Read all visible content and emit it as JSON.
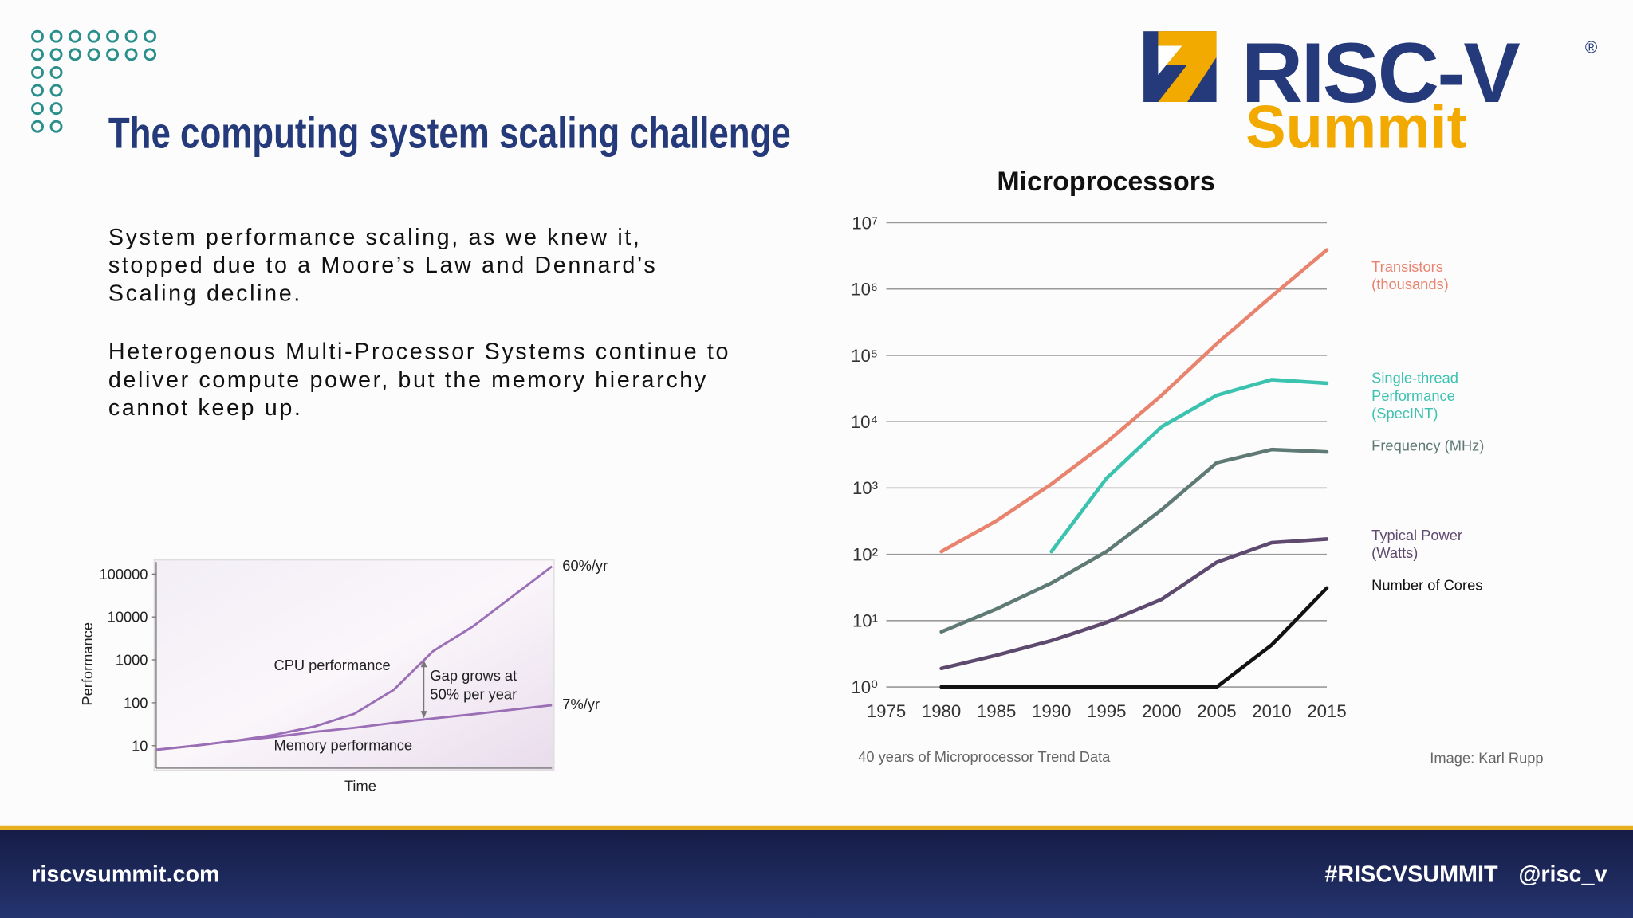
{
  "header": {
    "title": "The computing system scaling challenge",
    "logo": {
      "name": "RISC-V",
      "registered": "®",
      "tagline": "Summit"
    }
  },
  "body": {
    "paragraphs": [
      "System performance scaling, as we knew it, stopped due to a Moore’s Law and Dennard’s Scaling decline.",
      "Heterogenous Multi-Processor Systems continue to deliver compute power, but the memory hierarchy cannot keep up."
    ]
  },
  "chart_data": [
    {
      "type": "line",
      "y_label": "Performance",
      "x_label": "Time",
      "log_scale": true,
      "categories": [
        null,
        null,
        null,
        null,
        null,
        null,
        null,
        null,
        null,
        null,
        null
      ],
      "ylim": [
        3,
        190000
      ],
      "yticks": [
        10,
        100,
        1000,
        10000,
        100000
      ],
      "series": [
        {
          "name": "CPU performance",
          "color": "#9b6fb5",
          "values": [
            8,
            10,
            13,
            18,
            28,
            55,
            200,
            1600,
            6000,
            30000,
            150000
          ],
          "end_label": "60%/yr"
        },
        {
          "name": "Memory performance",
          "color": "#9b6fb5",
          "values": [
            8,
            10,
            13,
            16,
            21,
            26,
            34,
            43,
            54,
            69,
            88
          ],
          "end_label": "7%/yr"
        }
      ],
      "annotations": [
        "Gap grows at 50% per year"
      ]
    },
    {
      "type": "line",
      "title": "Microprocessors",
      "log_scale": true,
      "grid": true,
      "x": [
        1975,
        1980,
        1985,
        1990,
        1995,
        2000,
        2005,
        2010,
        2015
      ],
      "xlim": [
        1975,
        2015
      ],
      "xticks": [
        1975,
        1980,
        1985,
        1990,
        1995,
        2000,
        2005,
        2010,
        2015
      ],
      "ylim": [
        1,
        10000000
      ],
      "yticks": [
        {
          "value": 1,
          "label": "10⁰"
        },
        {
          "value": 10,
          "label": "10¹"
        },
        {
          "value": 100,
          "label": "10²"
        },
        {
          "value": 1000,
          "label": "10³"
        },
        {
          "value": 10000,
          "label": "10⁴"
        },
        {
          "value": 100000,
          "label": "10⁵"
        },
        {
          "value": 1000000,
          "label": "10⁶"
        },
        {
          "value": 10000000,
          "label": "10⁷"
        }
      ],
      "series": [
        {
          "name": "Transistors (thousands)",
          "color": "#e8836e",
          "values": [
            null,
            110,
            320,
            1150,
            4900,
            25000,
            150000,
            780000,
            3900000
          ]
        },
        {
          "name": "Single-thread Performance (SpecINT)",
          "color": "#3cc3b0",
          "values": [
            null,
            null,
            null,
            110,
            1400,
            8400,
            25000,
            43000,
            38000
          ]
        },
        {
          "name": "Frequency (MHz)",
          "color": "#5f7a75",
          "values": [
            null,
            6.8,
            15,
            37,
            110,
            470,
            2400,
            3800,
            3500
          ]
        },
        {
          "name": "Typical Power (Watts)",
          "color": "#5e4a6e",
          "values": [
            null,
            1.9,
            3,
            5,
            9.4,
            21,
            76,
            150,
            170
          ]
        },
        {
          "name": "Number of Cores",
          "color": "#111111",
          "values": [
            null,
            1,
            1,
            1,
            1,
            1,
            1,
            4.3,
            31
          ]
        }
      ],
      "caption": "40 years of Microprocessor Trend Data",
      "credit": "Image: Karl Rupp"
    }
  ],
  "footer": {
    "site": "riscvsummit.com",
    "hashtag": "#RISCVSUMMIT",
    "handle": "@risc_v"
  }
}
